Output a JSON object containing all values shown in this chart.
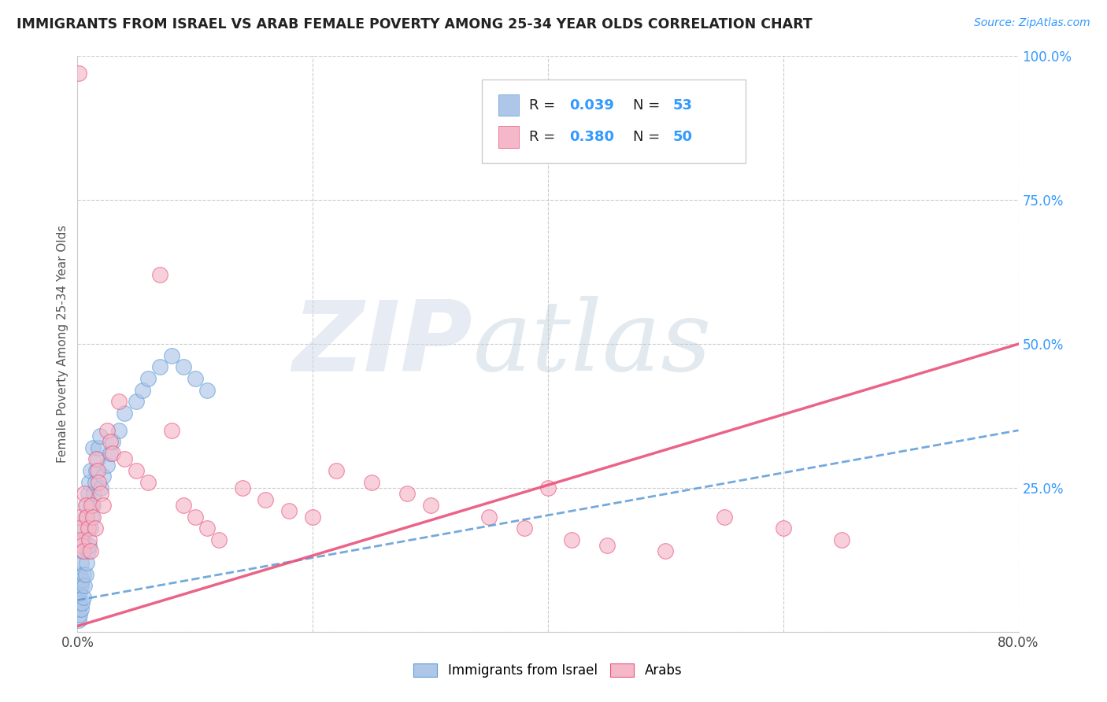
{
  "title": "IMMIGRANTS FROM ISRAEL VS ARAB FEMALE POVERTY AMONG 25-34 YEAR OLDS CORRELATION CHART",
  "source": "Source: ZipAtlas.com",
  "ylabel": "Female Poverty Among 25-34 Year Olds",
  "xlim": [
    0.0,
    0.8
  ],
  "ylim": [
    0.0,
    1.0
  ],
  "xticks": [
    0.0,
    0.2,
    0.4,
    0.6,
    0.8
  ],
  "xticklabels": [
    "0.0%",
    "",
    "",
    "",
    "80.0%"
  ],
  "yticks": [
    0.0,
    0.25,
    0.5,
    0.75,
    1.0
  ],
  "yticklabels": [
    "",
    "25.0%",
    "50.0%",
    "75.0%",
    "100.0%"
  ],
  "blue_color": "#aec6e8",
  "pink_color": "#f5b8c8",
  "blue_edge_color": "#5b9bd5",
  "pink_edge_color": "#e8537a",
  "blue_line_color": "#5b9bd5",
  "pink_line_color": "#e8537a",
  "watermark": "ZIPatlas",
  "blue_line_x0": 0.0,
  "blue_line_y0": 0.055,
  "blue_line_x1": 0.8,
  "blue_line_y1": 0.35,
  "pink_line_x0": 0.0,
  "pink_line_y0": 0.01,
  "pink_line_x1": 0.8,
  "pink_line_y1": 0.5,
  "blue_x": [
    0.001,
    0.001,
    0.001,
    0.001,
    0.002,
    0.002,
    0.002,
    0.002,
    0.003,
    0.003,
    0.003,
    0.004,
    0.004,
    0.004,
    0.005,
    0.005,
    0.005,
    0.006,
    0.006,
    0.007,
    0.007,
    0.008,
    0.008,
    0.009,
    0.009,
    0.01,
    0.01,
    0.011,
    0.011,
    0.012,
    0.013,
    0.013,
    0.014,
    0.015,
    0.016,
    0.017,
    0.018,
    0.019,
    0.02,
    0.022,
    0.025,
    0.028,
    0.03,
    0.035,
    0.04,
    0.05,
    0.055,
    0.06,
    0.07,
    0.08,
    0.09,
    0.1,
    0.11
  ],
  "blue_y": [
    0.02,
    0.04,
    0.06,
    0.08,
    0.03,
    0.05,
    0.07,
    0.1,
    0.04,
    0.08,
    0.12,
    0.05,
    0.09,
    0.14,
    0.06,
    0.1,
    0.16,
    0.08,
    0.18,
    0.1,
    0.2,
    0.12,
    0.22,
    0.14,
    0.24,
    0.15,
    0.26,
    0.18,
    0.28,
    0.2,
    0.22,
    0.32,
    0.24,
    0.26,
    0.28,
    0.3,
    0.32,
    0.34,
    0.25,
    0.27,
    0.29,
    0.31,
    0.33,
    0.35,
    0.38,
    0.4,
    0.42,
    0.44,
    0.46,
    0.48,
    0.46,
    0.44,
    0.42
  ],
  "pink_x": [
    0.001,
    0.002,
    0.002,
    0.003,
    0.004,
    0.005,
    0.006,
    0.007,
    0.008,
    0.009,
    0.01,
    0.011,
    0.012,
    0.013,
    0.015,
    0.016,
    0.017,
    0.018,
    0.02,
    0.022,
    0.025,
    0.028,
    0.03,
    0.035,
    0.04,
    0.05,
    0.06,
    0.07,
    0.08,
    0.09,
    0.1,
    0.11,
    0.12,
    0.14,
    0.16,
    0.18,
    0.2,
    0.22,
    0.25,
    0.28,
    0.3,
    0.35,
    0.38,
    0.4,
    0.42,
    0.45,
    0.5,
    0.55,
    0.6,
    0.65
  ],
  "pink_y": [
    0.97,
    0.2,
    0.18,
    0.16,
    0.15,
    0.14,
    0.24,
    0.22,
    0.2,
    0.18,
    0.16,
    0.14,
    0.22,
    0.2,
    0.18,
    0.3,
    0.28,
    0.26,
    0.24,
    0.22,
    0.35,
    0.33,
    0.31,
    0.4,
    0.3,
    0.28,
    0.26,
    0.62,
    0.35,
    0.22,
    0.2,
    0.18,
    0.16,
    0.25,
    0.23,
    0.21,
    0.2,
    0.28,
    0.26,
    0.24,
    0.22,
    0.2,
    0.18,
    0.25,
    0.16,
    0.15,
    0.14,
    0.2,
    0.18,
    0.16
  ]
}
